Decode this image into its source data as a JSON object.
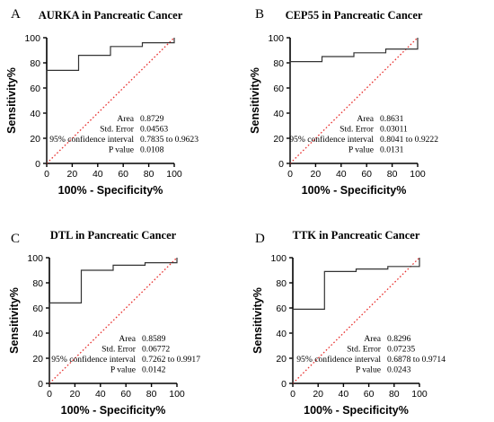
{
  "chart_data": [
    {
      "type": "line",
      "panel_label": "A",
      "title": "AURKA in Pancreatic Cancer",
      "xlabel": "100% - Specificity%",
      "ylabel": "Sensitivity%",
      "xlim": [
        0,
        100
      ],
      "ylim": [
        0,
        100
      ],
      "xticks": [
        "0",
        "20",
        "40",
        "60",
        "80",
        "100"
      ],
      "yticks": [
        "0",
        "20",
        "40",
        "60",
        "80",
        "100"
      ],
      "series": [
        {
          "x": [
            0,
            0,
            25,
            25,
            50,
            50,
            75,
            75,
            100,
            100
          ],
          "y": [
            0,
            74,
            74,
            86,
            86,
            93,
            93,
            96,
            96,
            100
          ]
        }
      ],
      "reference_line": {
        "x": [
          0,
          100
        ],
        "y": [
          0,
          100
        ],
        "color": "#e8312f",
        "style": "dotted"
      },
      "stats": [
        {
          "label": "Area",
          "value": "0.8729"
        },
        {
          "label": "Std. Error",
          "value": "0.04563"
        },
        {
          "label": "95% confidence interval",
          "value": "0.7835 to 0.9623"
        },
        {
          "label": "P value",
          "value": "0.0108"
        }
      ]
    },
    {
      "type": "line",
      "panel_label": "B",
      "title": "CEP55 in Pancreatic Cancer",
      "xlabel": "100% - Specificity%",
      "ylabel": "Sensitivity%",
      "xlim": [
        0,
        100
      ],
      "ylim": [
        0,
        100
      ],
      "xticks": [
        "0",
        "20",
        "40",
        "60",
        "80",
        "100"
      ],
      "yticks": [
        "0",
        "20",
        "40",
        "60",
        "80",
        "100"
      ],
      "series": [
        {
          "x": [
            0,
            0,
            25,
            25,
            50,
            50,
            75,
            75,
            100,
            100
          ],
          "y": [
            0,
            81,
            81,
            85,
            85,
            88,
            88,
            91,
            91,
            100
          ]
        }
      ],
      "reference_line": {
        "x": [
          0,
          100
        ],
        "y": [
          0,
          100
        ],
        "color": "#e8312f",
        "style": "dotted"
      },
      "stats": [
        {
          "label": "Area",
          "value": "0.8631"
        },
        {
          "label": "Std. Error",
          "value": "0.03011"
        },
        {
          "label": "95% confidence interval",
          "value": "0.8041 to 0.9222"
        },
        {
          "label": "P value",
          "value": "0.0131"
        }
      ]
    },
    {
      "type": "line",
      "panel_label": "C",
      "title": "DTL in Pancreatic Cancer",
      "xlabel": "100% - Specificity%",
      "ylabel": "Sensitivity%",
      "xlim": [
        0,
        100
      ],
      "ylim": [
        0,
        100
      ],
      "xticks": [
        "0",
        "20",
        "40",
        "60",
        "80",
        "100"
      ],
      "yticks": [
        "0",
        "20",
        "40",
        "60",
        "80",
        "100"
      ],
      "series": [
        {
          "x": [
            0,
            0,
            25,
            25,
            50,
            50,
            75,
            75,
            100,
            100
          ],
          "y": [
            0,
            64,
            64,
            90,
            90,
            94,
            94,
            96,
            96,
            100
          ]
        }
      ],
      "reference_line": {
        "x": [
          0,
          100
        ],
        "y": [
          0,
          100
        ],
        "color": "#e8312f",
        "style": "dotted"
      },
      "stats": [
        {
          "label": "Area",
          "value": "0.8589"
        },
        {
          "label": "Std. Error",
          "value": "0.06772"
        },
        {
          "label": "95% confidence interval",
          "value": "0.7262 to 0.9917"
        },
        {
          "label": "P value",
          "value": "0.0142"
        }
      ]
    },
    {
      "type": "line",
      "panel_label": "D",
      "title": "TTK in Pancreatic Cancer",
      "xlabel": "100% - Specificity%",
      "ylabel": "Sensitivity%",
      "xlim": [
        0,
        100
      ],
      "ylim": [
        0,
        100
      ],
      "xticks": [
        "0",
        "20",
        "40",
        "60",
        "80",
        "100"
      ],
      "yticks": [
        "0",
        "20",
        "40",
        "60",
        "80",
        "100"
      ],
      "series": [
        {
          "x": [
            0,
            0,
            25,
            25,
            50,
            50,
            75,
            75,
            100,
            100
          ],
          "y": [
            0,
            59,
            59,
            89,
            89,
            91,
            91,
            93,
            93,
            100
          ]
        }
      ],
      "reference_line": {
        "x": [
          0,
          100
        ],
        "y": [
          0,
          100
        ],
        "color": "#e8312f",
        "style": "dotted"
      },
      "stats": [
        {
          "label": "Area",
          "value": "0.8296"
        },
        {
          "label": "Std. Error",
          "value": "0.07235"
        },
        {
          "label": "95% confidence interval",
          "value": "0.6878 to 0.9714"
        },
        {
          "label": "P value",
          "value": "0.0243"
        }
      ]
    }
  ]
}
